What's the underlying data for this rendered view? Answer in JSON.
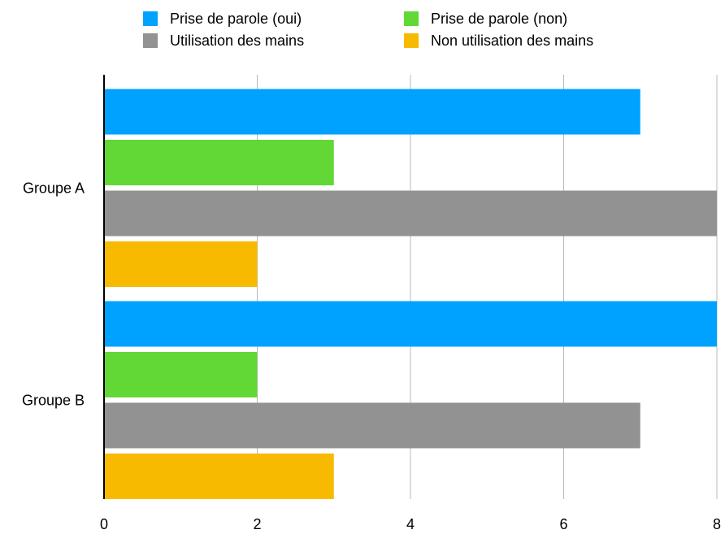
{
  "chart_data": {
    "type": "bar",
    "orientation": "horizontal",
    "categories": [
      "Groupe A",
      "Groupe B"
    ],
    "series": [
      {
        "name": "Prise de parole (oui)",
        "color": "#00A2FF",
        "values": [
          7,
          8
        ]
      },
      {
        "name": "Prise de parole (non)",
        "color": "#61D836",
        "values": [
          3,
          2
        ]
      },
      {
        "name": "Utilisation des mains",
        "color": "#929292",
        "values": [
          8,
          7
        ]
      },
      {
        "name": "Non utilisation des mains",
        "color": "#F8BA00",
        "values": [
          2,
          3
        ]
      }
    ],
    "xlim": [
      0,
      8
    ],
    "xticks": [
      0,
      2,
      4,
      6,
      8
    ],
    "title": "",
    "xlabel": "",
    "ylabel": "",
    "grid": true,
    "legend_position": "top"
  }
}
